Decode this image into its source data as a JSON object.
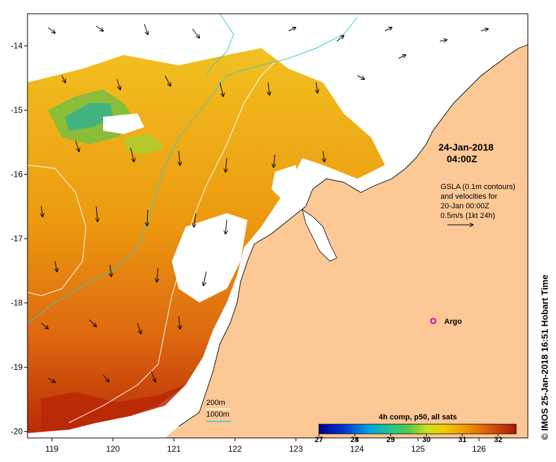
{
  "map": {
    "lon_range": [
      118.6,
      126.8
    ],
    "lat_range": [
      -20.1,
      -13.5
    ],
    "lon_ticks": [
      119,
      120,
      121,
      122,
      123,
      124,
      125,
      126
    ],
    "lat_ticks": [
      -14,
      -15,
      -16,
      -17,
      -18,
      -19,
      -20
    ],
    "colors": {
      "land": "#fbc896",
      "warm": "#e07a10",
      "hot": "#b82805",
      "contour_200": "#ffffff",
      "contour_1000": "#33cccc",
      "argo": "#cc00cc"
    }
  },
  "title": {
    "date": "24-Jan-2018",
    "time": "04:00Z"
  },
  "gsla": {
    "line1": "GSLA (0.1m contours)",
    "line2": "and velocities for",
    "line3": "20-Jan 00:00Z",
    "line4": "0.5m/s (1kt 24h)"
  },
  "argo": {
    "label": "Argo",
    "lon": 125.25,
    "lat": -18.28
  },
  "colorbar": {
    "title": "4h comp, p50, all sats",
    "min": 27,
    "max": 32.5,
    "ticks": [
      "27",
      "28",
      "29",
      "30",
      "31",
      "32"
    ]
  },
  "depth_legend": {
    "shallow": "200m",
    "deep": "1000m"
  },
  "credit": "© IMOS 25-Jan-2018 16:51 Hobart Time"
}
